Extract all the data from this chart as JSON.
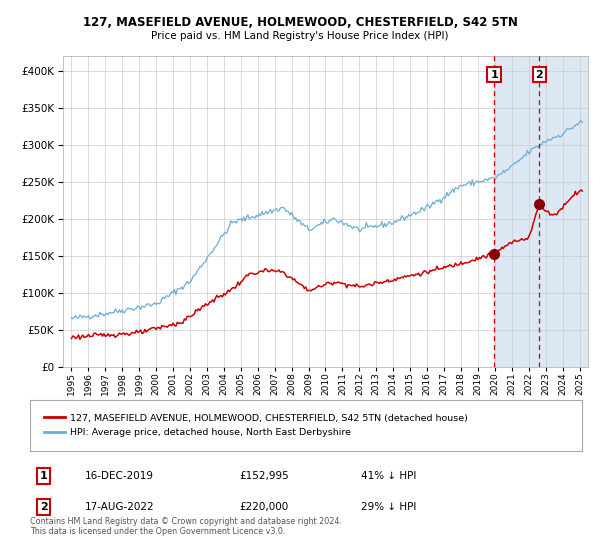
{
  "title_line1": "127, MASEFIELD AVENUE, HOLMEWOOD, CHESTERFIELD, S42 5TN",
  "title_line2": "Price paid vs. HM Land Registry's House Price Index (HPI)",
  "legend_line1": "127, MASEFIELD AVENUE, HOLMEWOOD, CHESTERFIELD, S42 5TN (detached house)",
  "legend_line2": "HPI: Average price, detached house, North East Derbyshire",
  "annotation1_date": "16-DEC-2019",
  "annotation1_price": "£152,995",
  "annotation1_hpi": "41% ↓ HPI",
  "annotation1_date_num": 2019.958,
  "annotation1_value": 152995,
  "annotation2_date": "17-AUG-2022",
  "annotation2_price": "£220,000",
  "annotation2_hpi": "29% ↓ HPI",
  "annotation2_date_num": 2022.625,
  "annotation2_value": 220000,
  "hpi_color": "#6baed6",
  "sale_color": "#cc0000",
  "marker_color": "#8b0000",
  "highlight_color": "#dce9f5",
  "vline_color": "#cc0000",
  "grid_color": "#cccccc",
  "background_color": "#ffffff",
  "footer": "Contains HM Land Registry data © Crown copyright and database right 2024.\nThis data is licensed under the Open Government Licence v3.0.",
  "ylim": [
    0,
    420000
  ],
  "xlim_start": 1994.5,
  "xlim_end": 2025.5
}
